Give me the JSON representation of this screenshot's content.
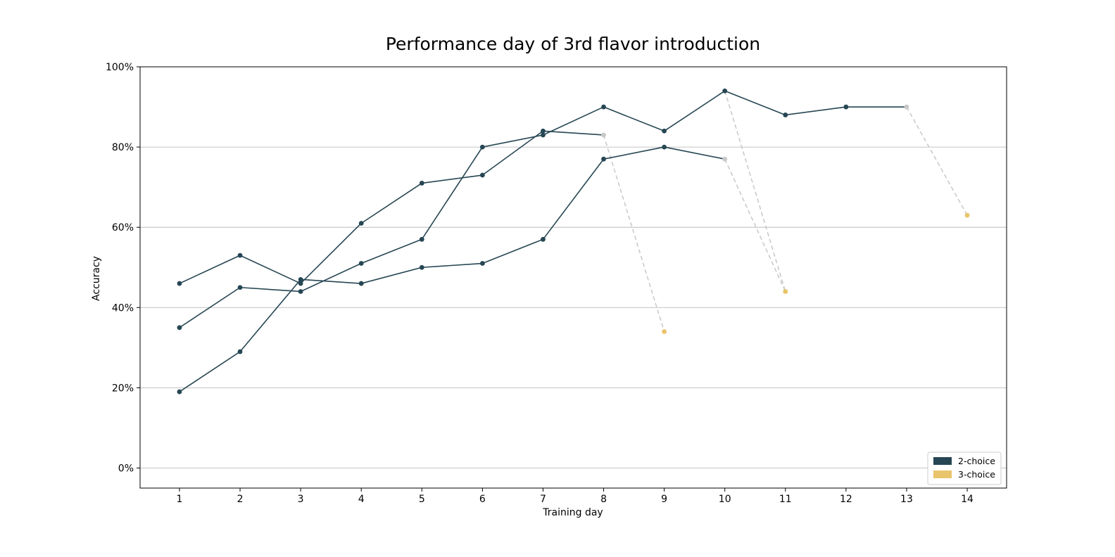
{
  "chart_data": {
    "type": "line",
    "title": "Performance day of 3rd flavor introduction",
    "xlabel": "Training day",
    "ylabel": "Accuracy",
    "xlim": [
      0.35,
      14.65
    ],
    "ylim": [
      -0.05,
      1.0
    ],
    "x_ticks": [
      1,
      2,
      3,
      4,
      5,
      6,
      7,
      8,
      9,
      10,
      11,
      12,
      13,
      14
    ],
    "y_ticks": [
      0,
      0.2,
      0.4,
      0.6,
      0.8,
      1.0
    ],
    "y_tick_labels": [
      "0%",
      "20%",
      "40%",
      "60%",
      "80%",
      "100%"
    ],
    "grid": "horizontal",
    "legend_position": "bottom-right",
    "legend": [
      {
        "label": "2-choice",
        "color": "#264653"
      },
      {
        "label": "3-choice",
        "color": "#E9C46A"
      }
    ],
    "colors": {
      "two_choice": "#264653",
      "three_choice": "#E9C46A",
      "connector": "#c8c8c8",
      "grid": "#b0b0b0"
    },
    "series": [
      {
        "two_choice": {
          "x": [
            1,
            2,
            3,
            4,
            5,
            6,
            7,
            8
          ],
          "y": [
            0.46,
            0.53,
            0.46,
            0.61,
            0.71,
            0.73,
            0.84,
            0.83
          ]
        },
        "three_choice": {
          "x": [
            9
          ],
          "y": [
            0.34
          ]
        }
      },
      {
        "two_choice": {
          "x": [
            1,
            2,
            3,
            4,
            5,
            6,
            7,
            8,
            9,
            10
          ],
          "y": [
            0.35,
            0.45,
            0.44,
            0.51,
            0.57,
            0.8,
            0.83,
            0.9,
            0.84,
            0.94
          ]
        },
        "three_choice": {
          "x": [
            11
          ],
          "y": [
            0.44
          ]
        }
      },
      {
        "two_choice": {
          "x": [
            1,
            2,
            3,
            4,
            5,
            6,
            7,
            8,
            9,
            10
          ],
          "y": [
            0.19,
            0.29,
            0.47,
            0.46,
            0.5,
            0.51,
            0.57,
            0.77,
            0.8,
            0.77
          ]
        },
        "three_choice": {
          "x": [
            11
          ],
          "y": [
            0.44
          ]
        }
      },
      {
        "two_choice": {
          "x": [
            10,
            11,
            12,
            13
          ],
          "y": [
            0.94,
            0.88,
            0.9,
            0.9
          ]
        },
        "three_choice": {
          "x": [
            14
          ],
          "y": [
            0.63
          ]
        }
      }
    ]
  }
}
